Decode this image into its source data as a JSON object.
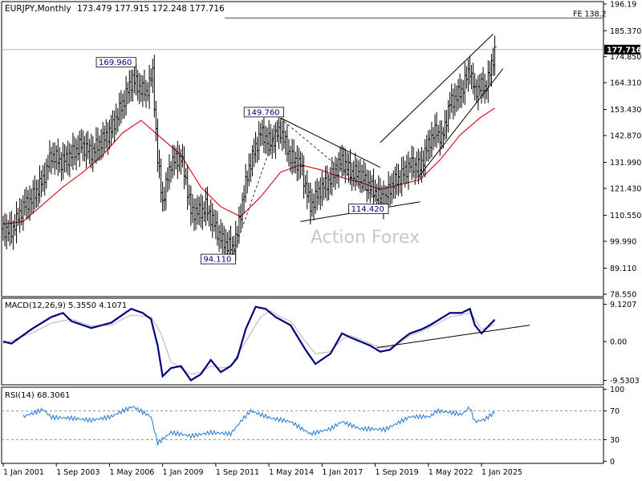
{
  "header": {
    "symbol": "EURJPY,Monthly",
    "ohlc": "173.479 177.915 172.248 177.716"
  },
  "watermark": "Action Forex",
  "colors": {
    "bars": "#000000",
    "ma": "#e0141e",
    "macd": "#000080",
    "signal": "#b4b4b4",
    "rsi": "#1e78dc",
    "trendline": "#000000",
    "level_line": "#555555"
  },
  "chart_data": [
    {
      "type": "ohlc",
      "title": "EURJPY,Monthly",
      "ylim": [
        78.55,
        196.19
      ],
      "price_ticks": [
        "196.19",
        "185.370",
        "174.850",
        "164.310",
        "153.430",
        "142.870",
        "131.990",
        "121.430",
        "110.550",
        "99.990",
        "89.110",
        "78.550"
      ],
      "x_ticks": [
        "1 Jan 2001",
        "1 Sep 2003",
        "1 May 2006",
        "1 Jan 2009",
        "1 Sep 2011",
        "1 May 2014",
        "1 Jan 2017",
        "1 Sep 2019",
        "1 May 2022",
        "1 Jan 2025"
      ],
      "last_price": "177.716",
      "level": {
        "label": "FE 138.2",
        "value": 190.5
      },
      "annotations": [
        {
          "text": "169.960",
          "date": "2007-07",
          "value": 169.96
        },
        {
          "text": "149.760",
          "date": "2014-12",
          "value": 149.76
        },
        {
          "text": "94.110",
          "date": "2012-07",
          "value": 94.11
        },
        {
          "text": "114.420",
          "date": "2020-03",
          "value": 114.42
        }
      ],
      "close_path": [
        [
          "2001-01",
          105
        ],
        [
          "2001-06",
          104
        ],
        [
          "2002-01",
          114
        ],
        [
          "2002-06",
          117
        ],
        [
          "2003-01",
          125
        ],
        [
          "2003-06",
          135
        ],
        [
          "2003-12",
          132
        ],
        [
          "2004-06",
          135
        ],
        [
          "2004-12",
          139
        ],
        [
          "2005-06",
          136
        ],
        [
          "2006-01",
          141
        ],
        [
          "2006-06",
          145
        ],
        [
          "2007-01",
          156
        ],
        [
          "2007-07",
          166
        ],
        [
          "2007-10",
          163
        ],
        [
          "2008-03",
          160
        ],
        [
          "2008-07",
          168
        ],
        [
          "2008-10",
          133
        ],
        [
          "2009-01",
          116
        ],
        [
          "2009-06",
          132
        ],
        [
          "2009-12",
          134
        ],
        [
          "2010-03",
          125
        ],
        [
          "2010-06",
          112
        ],
        [
          "2010-12",
          112
        ],
        [
          "2011-03",
          114
        ],
        [
          "2011-10",
          104
        ],
        [
          "2012-01",
          100
        ],
        [
          "2012-07",
          97
        ],
        [
          "2012-10",
          103
        ],
        [
          "2013-01",
          116
        ],
        [
          "2013-05",
          130
        ],
        [
          "2013-12",
          144
        ],
        [
          "2014-06",
          140
        ],
        [
          "2014-12",
          145
        ],
        [
          "2015-06",
          134
        ],
        [
          "2015-12",
          131
        ],
        [
          "2016-06",
          114
        ],
        [
          "2016-12",
          121
        ],
        [
          "2017-06",
          125
        ],
        [
          "2018-01",
          133
        ],
        [
          "2018-06",
          128
        ],
        [
          "2018-12",
          127
        ],
        [
          "2019-06",
          122
        ],
        [
          "2019-10",
          119
        ],
        [
          "2020-03",
          117
        ],
        [
          "2020-06",
          122
        ],
        [
          "2020-12",
          126
        ],
        [
          "2021-06",
          131
        ],
        [
          "2021-12",
          130
        ],
        [
          "2022-06",
          141
        ],
        [
          "2022-10",
          145
        ],
        [
          "2023-01",
          141
        ],
        [
          "2023-06",
          156
        ],
        [
          "2023-09",
          158
        ],
        [
          "2024-01",
          161
        ],
        [
          "2024-06",
          170
        ],
        [
          "2024-09",
          160
        ],
        [
          "2024-12",
          163
        ],
        [
          "2025-03",
          162
        ],
        [
          "2025-06",
          168
        ],
        [
          "2025-09",
          177.7
        ]
      ],
      "moving_average": [
        [
          "2001-01",
          107
        ],
        [
          "2002-01",
          108
        ],
        [
          "2003-01",
          115
        ],
        [
          "2004-01",
          122
        ],
        [
          "2005-01",
          128
        ],
        [
          "2006-01",
          135
        ],
        [
          "2007-01",
          144
        ],
        [
          "2007-12",
          149
        ],
        [
          "2008-12",
          142
        ],
        [
          "2009-12",
          135
        ],
        [
          "2010-12",
          122
        ],
        [
          "2011-12",
          114
        ],
        [
          "2012-12",
          110
        ],
        [
          "2013-12",
          118
        ],
        [
          "2014-12",
          128
        ],
        [
          "2015-12",
          131
        ],
        [
          "2016-12",
          129
        ],
        [
          "2017-12",
          126
        ],
        [
          "2018-12",
          124
        ],
        [
          "2019-12",
          121
        ],
        [
          "2020-12",
          123
        ],
        [
          "2021-12",
          125
        ],
        [
          "2022-12",
          133
        ],
        [
          "2023-12",
          143
        ],
        [
          "2024-12",
          150
        ],
        [
          "2025-09",
          154
        ]
      ],
      "lines": [
        {
          "name": "falling-resistance",
          "from": [
            "2014-12",
            150
          ],
          "to": [
            "2019-12",
            130
          ]
        },
        {
          "name": "rising-support",
          "from": [
            "2015-12",
            108
          ],
          "to": [
            "2021-12",
            116
          ]
        },
        {
          "name": "channel-upper",
          "from": [
            "2019-12",
            140
          ],
          "to": [
            "2025-08",
            184
          ]
        },
        {
          "name": "channel-lower",
          "from": [
            "2021-11",
            126
          ],
          "to": [
            "2026-02",
            170
          ]
        }
      ],
      "dashed_lines": [
        {
          "from": [
            "2012-07",
            94.1
          ],
          "to": [
            "2014-12",
            149.8
          ]
        },
        {
          "from": [
            "2014-12",
            149.8
          ],
          "to": [
            "2020-03",
            114.4
          ]
        }
      ]
    },
    {
      "type": "line",
      "title": "MACD(12,26,9) 5.3550 4.1071",
      "ylim": [
        -10.6,
        10.6
      ],
      "ticks": [
        "9.1207",
        "0.00",
        "-9.5303"
      ],
      "series": [
        {
          "name": "MACD",
          "values": [
            [
              "2001-01",
              0
            ],
            [
              "2001-06",
              -0.5
            ],
            [
              "2002-06",
              3
            ],
            [
              "2003-06",
              6
            ],
            [
              "2004-01",
              7
            ],
            [
              "2004-06",
              5
            ],
            [
              "2005-06",
              3.3
            ],
            [
              "2006-06",
              4.6
            ],
            [
              "2007-06",
              8
            ],
            [
              "2008-01",
              7
            ],
            [
              "2008-06",
              5.5
            ],
            [
              "2008-10",
              -1
            ],
            [
              "2009-01",
              -8.5
            ],
            [
              "2009-06",
              -6.5
            ],
            [
              "2009-12",
              -6
            ],
            [
              "2010-06",
              -9.5
            ],
            [
              "2010-12",
              -8
            ],
            [
              "2011-06",
              -4.5
            ],
            [
              "2011-12",
              -7.5
            ],
            [
              "2012-06",
              -6
            ],
            [
              "2012-10",
              -4
            ],
            [
              "2013-03",
              3
            ],
            [
              "2013-09",
              8.5
            ],
            [
              "2014-03",
              8
            ],
            [
              "2014-09",
              6
            ],
            [
              "2015-06",
              4
            ],
            [
              "2016-03",
              -2
            ],
            [
              "2016-09",
              -5.5
            ],
            [
              "2017-06",
              -3
            ],
            [
              "2018-01",
              2
            ],
            [
              "2018-06",
              1
            ],
            [
              "2019-06",
              -1
            ],
            [
              "2019-12",
              -2.5
            ],
            [
              "2020-06",
              -2
            ],
            [
              "2021-01",
              0.5
            ],
            [
              "2021-06",
              2
            ],
            [
              "2022-01",
              3
            ],
            [
              "2022-06",
              4
            ],
            [
              "2023-06",
              7
            ],
            [
              "2024-01",
              7
            ],
            [
              "2024-06",
              8
            ],
            [
              "2024-09",
              4
            ],
            [
              "2025-01",
              2
            ],
            [
              "2025-09",
              5.36
            ]
          ]
        },
        {
          "name": "Signal",
          "values": [
            [
              "2001-01",
              -0.5
            ],
            [
              "2002-06",
              2
            ],
            [
              "2003-06",
              4.5
            ],
            [
              "2004-06",
              5.5
            ],
            [
              "2005-06",
              3.8
            ],
            [
              "2006-06",
              4
            ],
            [
              "2007-06",
              6.5
            ],
            [
              "2008-06",
              6
            ],
            [
              "2008-12",
              2
            ],
            [
              "2009-06",
              -5
            ],
            [
              "2009-12",
              -6.5
            ],
            [
              "2010-06",
              -8
            ],
            [
              "2010-12",
              -7.5
            ],
            [
              "2011-06",
              -6
            ],
            [
              "2011-12",
              -6.5
            ],
            [
              "2012-06",
              -6
            ],
            [
              "2012-12",
              -2
            ],
            [
              "2013-06",
              2
            ],
            [
              "2013-12",
              6
            ],
            [
              "2014-06",
              7.5
            ],
            [
              "2014-12",
              6
            ],
            [
              "2015-06",
              5
            ],
            [
              "2016-03",
              0
            ],
            [
              "2016-09",
              -3
            ],
            [
              "2017-06",
              -2.5
            ],
            [
              "2018-01",
              0.5
            ],
            [
              "2018-06",
              1.5
            ],
            [
              "2019-06",
              -0.5
            ],
            [
              "2019-12",
              -1.5
            ],
            [
              "2020-06",
              -1.5
            ],
            [
              "2021-01",
              0
            ],
            [
              "2021-06",
              1.5
            ],
            [
              "2022-01",
              2.5
            ],
            [
              "2022-06",
              3.5
            ],
            [
              "2023-06",
              6
            ],
            [
              "2024-01",
              6.5
            ],
            [
              "2024-06",
              7
            ],
            [
              "2024-09",
              5.5
            ],
            [
              "2025-01",
              3
            ],
            [
              "2025-09",
              4.11
            ]
          ]
        }
      ],
      "trendline": {
        "from": [
          "2019-10",
          -1.5
        ],
        "to": [
          "2027-06",
          4
        ]
      }
    },
    {
      "type": "line",
      "title": "RSI(14) 68.3061",
      "ylim": [
        -3,
        103
      ],
      "ticks": [
        "100",
        "70",
        "30",
        "0"
      ],
      "levels": [
        70,
        30
      ],
      "series": [
        {
          "name": "RSI",
          "values": [
            [
              "2002-01",
              62
            ],
            [
              "2003-01",
              72
            ],
            [
              "2003-06",
              61
            ],
            [
              "2004-06",
              60
            ],
            [
              "2005-06",
              57
            ],
            [
              "2006-06",
              62
            ],
            [
              "2007-01",
              70
            ],
            [
              "2007-07",
              76
            ],
            [
              "2008-06",
              62
            ],
            [
              "2008-10",
              25
            ],
            [
              "2009-06",
              40
            ],
            [
              "2010-06",
              35
            ],
            [
              "2011-06",
              40
            ],
            [
              "2012-06",
              38
            ],
            [
              "2013-01",
              58
            ],
            [
              "2013-06",
              70
            ],
            [
              "2014-06",
              60
            ],
            [
              "2015-06",
              55
            ],
            [
              "2016-06",
              38
            ],
            [
              "2017-06",
              45
            ],
            [
              "2018-01",
              55
            ],
            [
              "2018-12",
              45
            ],
            [
              "2019-06",
              45
            ],
            [
              "2020-03",
              44
            ],
            [
              "2020-12",
              55
            ],
            [
              "2021-06",
              62
            ],
            [
              "2022-06",
              62
            ],
            [
              "2022-10",
              70
            ],
            [
              "2023-06",
              68
            ],
            [
              "2024-01",
              65
            ],
            [
              "2024-06",
              75
            ],
            [
              "2024-09",
              55
            ],
            [
              "2025-03",
              58
            ],
            [
              "2025-09",
              68.3
            ]
          ]
        }
      ]
    }
  ]
}
